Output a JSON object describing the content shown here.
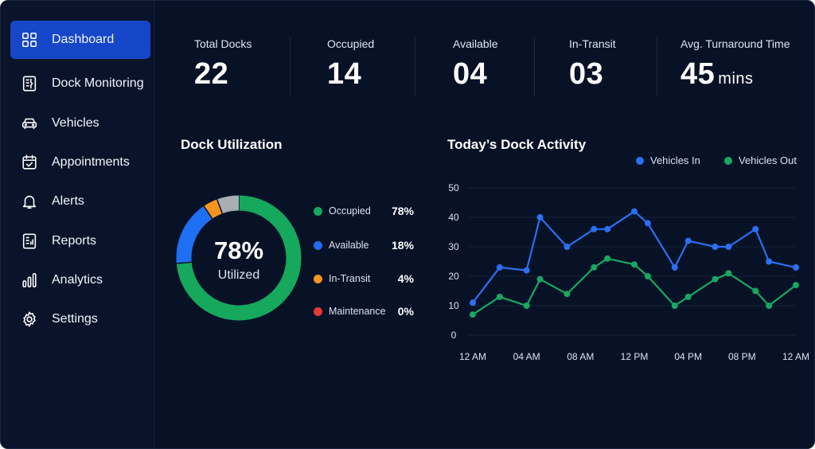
{
  "sidebar": {
    "items": [
      {
        "label": "Dashboard",
        "icon": "grid-icon",
        "active": true
      },
      {
        "label": "Dock Monitoring",
        "icon": "dock-monitor-icon",
        "active": false
      },
      {
        "label": "Vehicles",
        "icon": "car-icon",
        "active": false
      },
      {
        "label": "Appointments",
        "icon": "calendar-check-icon",
        "active": false
      },
      {
        "label": "Alerts",
        "icon": "bell-icon",
        "active": false
      },
      {
        "label": "Reports",
        "icon": "report-icon",
        "active": false
      },
      {
        "label": "Analytics",
        "icon": "bar-chart-icon",
        "active": false
      },
      {
        "label": "Settings",
        "icon": "gear-icon",
        "active": false
      }
    ]
  },
  "kpis": [
    {
      "title": "Total Docks",
      "value": "22",
      "unit": ""
    },
    {
      "title": "Occupied",
      "value": "14",
      "unit": ""
    },
    {
      "title": "Available",
      "value": "04",
      "unit": ""
    },
    {
      "title": "In-Transit",
      "value": "03",
      "unit": ""
    },
    {
      "title": "Avg. Turnaround Time",
      "value": "45",
      "unit": "mins"
    }
  ],
  "utilization": {
    "title": "Dock Utilization",
    "center_value": "78%",
    "center_label": "Utilized",
    "legend": [
      {
        "label": "Occupied",
        "value": "78%",
        "color": "#16a85d"
      },
      {
        "label": "Available",
        "value": "18%",
        "color": "#1e6ff2"
      },
      {
        "label": "In-Transit",
        "value": "4%",
        "color": "#f5951f"
      },
      {
        "label": "Maintenance",
        "value": "0%",
        "color": "#e53935"
      }
    ],
    "unlabeled_segment_color": "#a9adb4"
  },
  "activity": {
    "title": "Today’s Dock Activity",
    "legend": [
      {
        "label": "Vehicles In",
        "color": "#2b6ff2"
      },
      {
        "label": "Vehicles Out",
        "color": "#18a862"
      }
    ]
  },
  "chart_data": [
    {
      "type": "pie",
      "title": "Dock Utilization",
      "categories": [
        "Occupied",
        "Available",
        "In-Transit",
        "Maintenance"
      ],
      "values": [
        78,
        18,
        4,
        0
      ],
      "colors": [
        "#16a85d",
        "#1e6ff2",
        "#f5951f",
        "#e53935"
      ],
      "extra_segment": {
        "value": 6,
        "color": "#a9adb4"
      },
      "legend_position": "right"
    },
    {
      "type": "line",
      "title": "Today’s Dock Activity",
      "x": [
        0,
        2,
        4,
        5,
        7,
        9,
        10,
        12,
        13,
        15,
        16,
        18,
        19,
        21,
        22,
        24
      ],
      "x_ticks": [
        "12 AM",
        "04 AM",
        "08 AM",
        "12 PM",
        "04 PM",
        "08 PM",
        "12 AM"
      ],
      "x_tick_values": [
        0,
        4,
        8,
        12,
        16,
        20,
        24
      ],
      "xlim": [
        0,
        24
      ],
      "ylim": [
        0,
        50
      ],
      "y_ticks": [
        0,
        10,
        20,
        30,
        40,
        50
      ],
      "grid": true,
      "legend_position": "top-right",
      "series": [
        {
          "name": "Vehicles In",
          "color": "#2b6ff2",
          "values": [
            11,
            23,
            22,
            40,
            30,
            36,
            36,
            42,
            38,
            23,
            32,
            30,
            30,
            36,
            25,
            23
          ]
        },
        {
          "name": "Vehicles Out",
          "color": "#18a862",
          "values": [
            7,
            13,
            10,
            19,
            14,
            23,
            26,
            24,
            20,
            10,
            13,
            19,
            21,
            15,
            10,
            17
          ]
        }
      ]
    }
  ]
}
